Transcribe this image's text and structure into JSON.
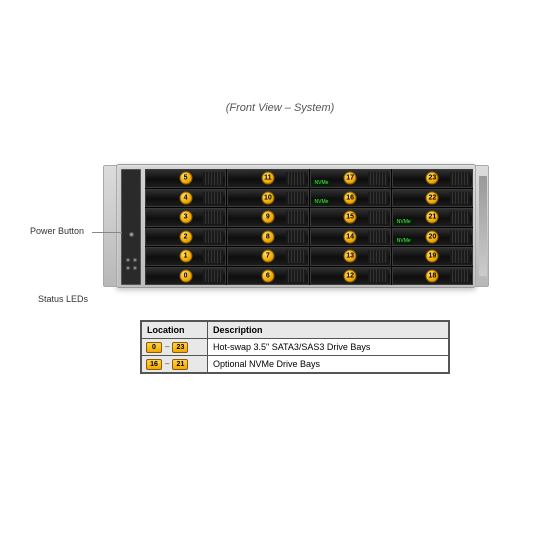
{
  "title": "(Front View – System)",
  "callouts": {
    "power_button": "Power Button",
    "status_leds": "Status LEDs"
  },
  "bays": {
    "rows": 6,
    "cols": 4,
    "badge_color": "#f2a900",
    "badge_text_color": "#000000",
    "numbers": [
      5,
      4,
      3,
      2,
      1,
      0,
      11,
      10,
      9,
      8,
      7,
      6,
      17,
      16,
      15,
      14,
      13,
      12,
      23,
      22,
      21,
      20,
      19,
      18
    ],
    "nvme_slots": [
      16,
      17,
      20,
      21
    ]
  },
  "legend": {
    "columns": [
      "Location",
      "Description"
    ],
    "rows": [
      {
        "range": [
          "0",
          "23"
        ],
        "desc": "Hot-swap 3.5\" SATA3/SAS3 Drive Bays"
      },
      {
        "range": [
          "16",
          "21"
        ],
        "desc": "Optional NVMe Drive Bays"
      }
    ]
  },
  "colors": {
    "chassis_light": "#d4d4d4",
    "chassis_dark": "#bcbcbc",
    "bay_bg": "#1a1a1a",
    "border": "#555555"
  }
}
